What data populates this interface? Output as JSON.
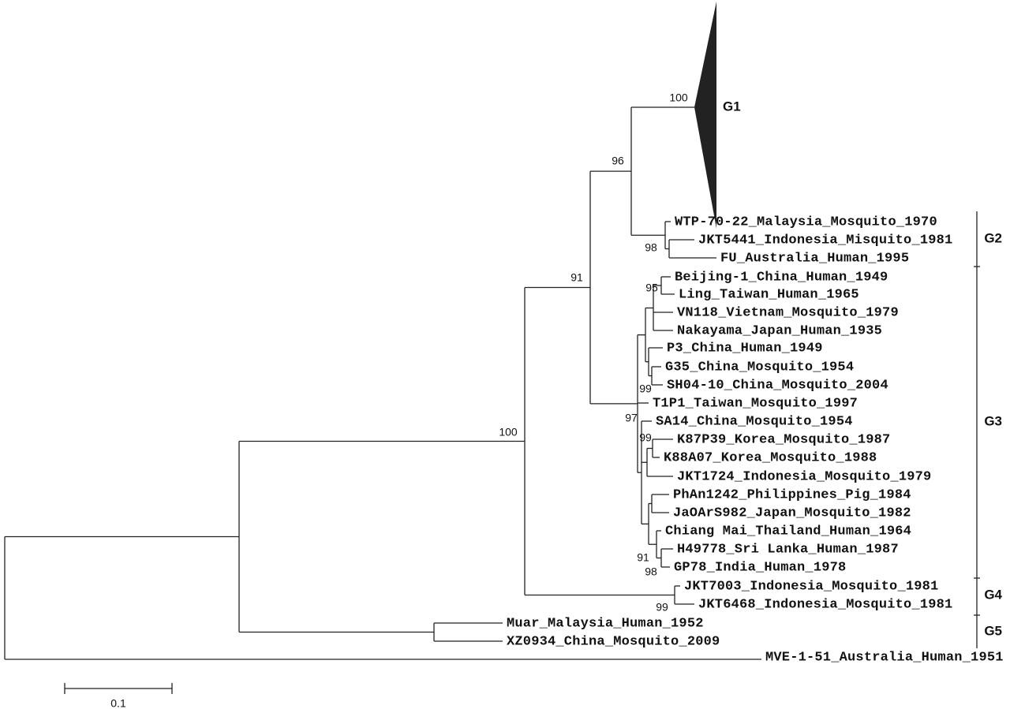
{
  "leaves": [
    "WTP-70-22_Malaysia_Mosquito_1970",
    "JKT5441_Indonesia_Misquito_1981",
    "FU_Australia_Human_1995",
    "Beijing-1_China_Human_1949",
    "Ling_Taiwan_Human_1965",
    "VN118_Vietnam_Mosquito_1979",
    "Nakayama_Japan_Human_1935",
    "P3_China_Human_1949",
    "G35_China_Mosquito_1954",
    "SH04-10_China_Mosquito_2004",
    "T1P1_Taiwan_Mosquito_1997",
    "SA14_China_Mosquito_1954",
    "K87P39_Korea_Mosquito_1987",
    "K88A07_Korea_Mosquito_1988",
    "JKT1724_Indonesia_Mosquito_1979",
    "PhAn1242_Philippines_Pig_1984",
    "JaOArS982_Japan_Mosquito_1982",
    "Chiang Mai_Thailand_Human_1964",
    "H49778_Sri Lanka_Human_1987",
    "GP78_India_Human_1978",
    "JKT7003_Indonesia_Mosquito_1981",
    "JKT6468_Indonesia_Mosquito_1981",
    "Muar_Malaysia_Human_1952",
    "XZ0934_China_Mosquito_2009",
    "MVE-1-51_Australia_Human_1951"
  ],
  "bootstrap": [
    100,
    96,
    91,
    98,
    95,
    99,
    97,
    99,
    100,
    91,
    98,
    99
  ],
  "groups": [
    "G1",
    "G2",
    "G3",
    "G4",
    "G5"
  ],
  "scale_label": "0.1"
}
